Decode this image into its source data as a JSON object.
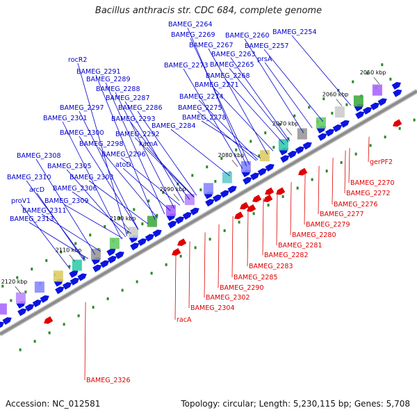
{
  "title": "Bacillus anthracis str. CDC 684, complete genome",
  "accession": "Accession: NC_012581",
  "topology": "Topology: circular; Length: 5,230,115 bp; Genes: 5,708",
  "colors": {
    "forward_label": "#0000cc",
    "reverse_label": "#dd0000",
    "forward_gene": "#0a14e0",
    "reverse_gene": "#e00000",
    "rna": "#2a8a2a",
    "backbone": "#8c8c8c"
  },
  "ticks": [
    "2050 kbp",
    "2060 kbp",
    "2070 kbp",
    "2080 kbp",
    "2090 kbp",
    "2100 kbp",
    "2110 kbp",
    "2120 kbp"
  ],
  "forward_labels": [
    "BAMEG_2264",
    "BAMEG_2269",
    "BAMEG_2260",
    "BAMEG_2254",
    "BAMEG_2267",
    "BAMEG_2257",
    "BAMEG_2263",
    "rocR2",
    "prsA",
    "BAMEG_2273",
    "BAMEG_2265",
    "BAMEG_2291",
    "BAMEG_2268",
    "BAMEG_2289",
    "BAMEG_2271",
    "BAMEG_2288",
    "BAMEG_2274",
    "BAMEG_2287",
    "BAMEG_2297",
    "BAMEG_2286",
    "BAMEG_2275",
    "BAMEG_2278",
    "BAMEG_2301",
    "BAMEG_2293",
    "BAMEG_2284",
    "BAMEG_2300",
    "BAMEG_2292",
    "BAMEG_2298",
    "kamA",
    "BAMEG_2296",
    "atoD",
    "BAMEG_2308",
    "BAMEG_2305",
    "BAMEG_2303",
    "BAMEG_2310",
    "arcD",
    "BAMEG_2306",
    "proV1",
    "BAMEG_2309",
    "BAMEG_2311",
    "BAMEG_2313"
  ],
  "reverse_labels": [
    "gerPF2",
    "BAMEG_2270",
    "BAMEG_2272",
    "BAMEG_2276",
    "BAMEG_2277",
    "BAMEG_2279",
    "BAMEG_2280",
    "BAMEG_2281",
    "BAMEG_2282",
    "BAMEG_2283",
    "BAMEG_2285",
    "BAMEG_2290",
    "BAMEG_2302",
    "BAMEG_2304",
    "racA",
    "BAMEG_2326"
  ]
}
